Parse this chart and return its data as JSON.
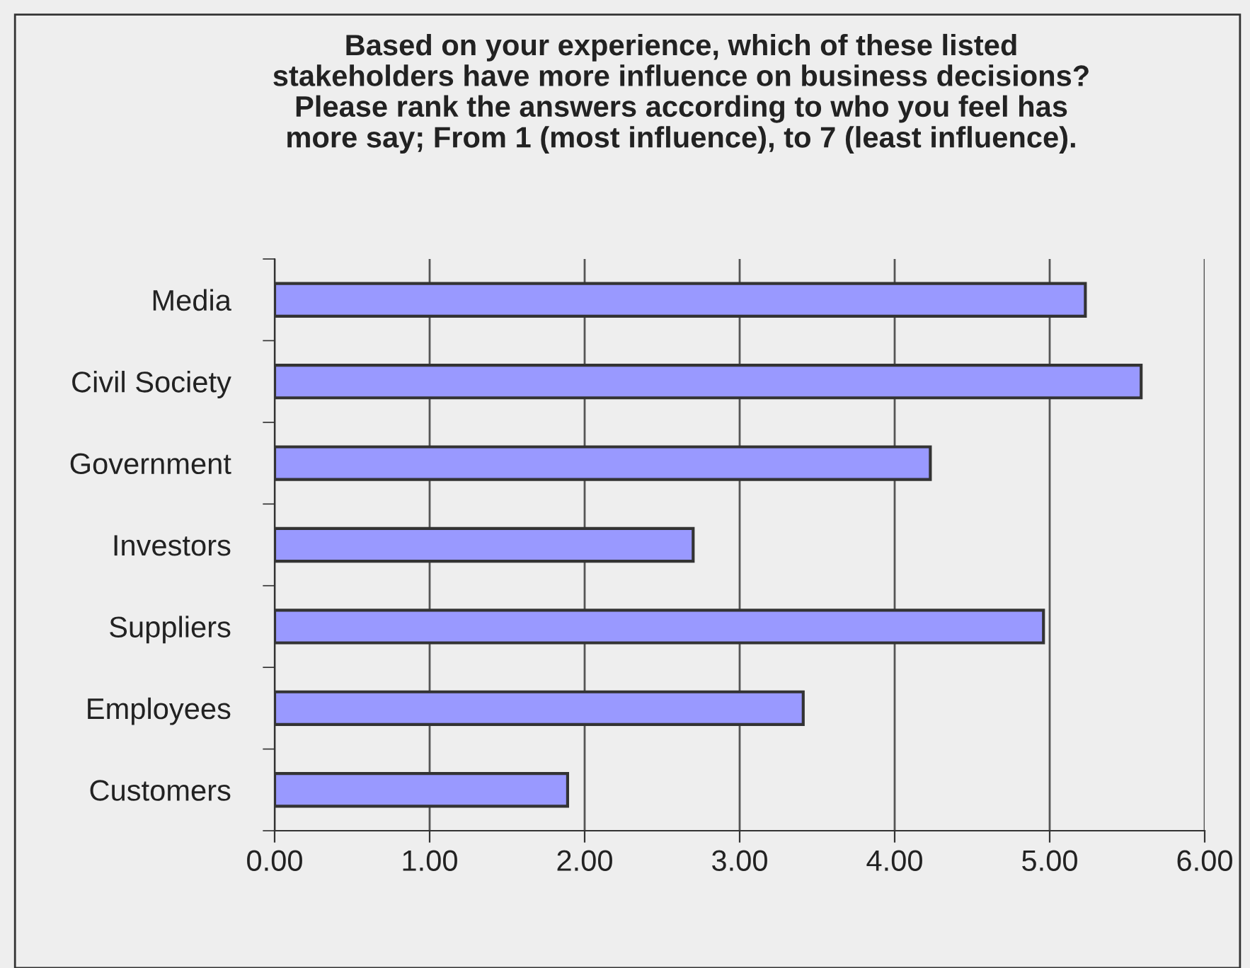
{
  "chart_data": {
    "type": "bar",
    "orientation": "horizontal",
    "title": "Based on your experience, which of these listed\nstakeholders have more influence on business decisions?\nPlease rank the answers according to who you feel has\nmore say; From 1 (most influence), to 7 (least influence).",
    "categories": [
      "Media",
      "Civil Society",
      "Government",
      "Investors",
      "Suppliers",
      "Employees",
      "Customers"
    ],
    "values": [
      5.23,
      5.59,
      4.23,
      2.7,
      4.96,
      3.41,
      1.89
    ],
    "color": "#9999ff",
    "xlim": [
      0,
      6
    ],
    "xticks": [
      {
        "value": 0,
        "label": "0.00"
      },
      {
        "value": 1,
        "label": "1.00"
      },
      {
        "value": 2,
        "label": "2.00"
      },
      {
        "value": 3,
        "label": "3.00"
      },
      {
        "value": 4,
        "label": "4.00"
      },
      {
        "value": 5,
        "label": "5.00"
      },
      {
        "value": 6,
        "label": "6.00"
      }
    ],
    "grid": "x"
  }
}
